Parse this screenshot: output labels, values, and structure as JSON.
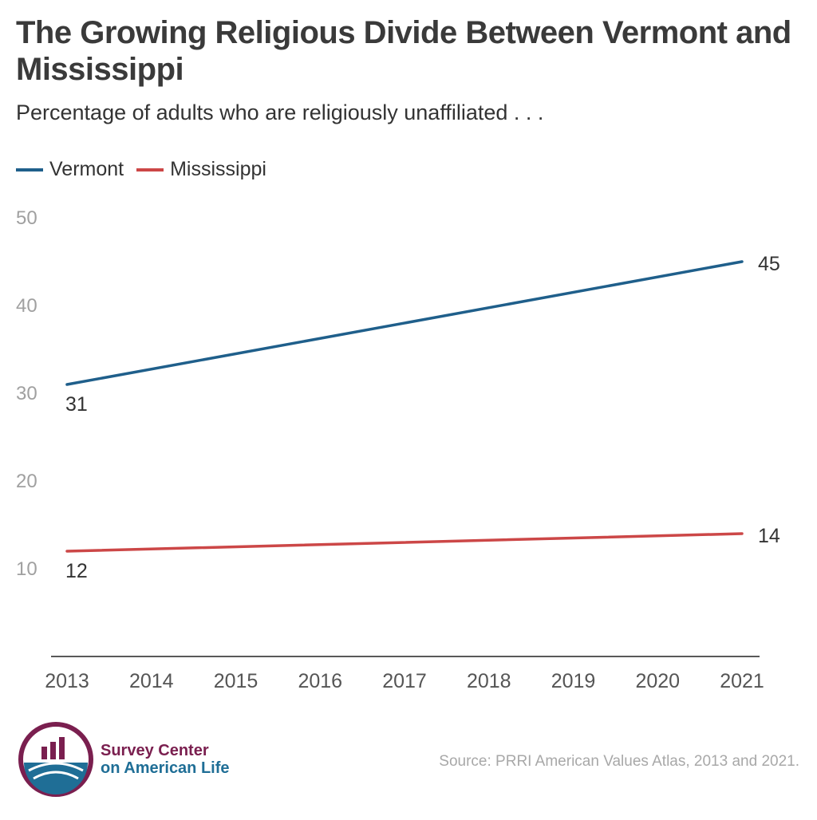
{
  "title": "The Growing Religious Divide Between Vermont and Mississippi",
  "subtitle": "Percentage of adults who are religiously unaffiliated . . .",
  "legend": {
    "vermont": "Vermont",
    "mississippi": "Mississippi"
  },
  "source": "Source: PRRI American Values Atlas, 2013 and 2021.",
  "logo": {
    "line1": "Survey Center",
    "line2": "on American Life",
    "icon": "survey-center-logo-icon",
    "colors": {
      "maroon": "#7a1f4f",
      "blue": "#1f6e96"
    }
  },
  "chart_data": {
    "type": "line",
    "title": "The Growing Religious Divide Between Vermont and Mississippi",
    "subtitle": "Percentage of adults who are religiously unaffiliated . . .",
    "xlabel": "",
    "ylabel": "",
    "x": [
      "2013",
      "2014",
      "2015",
      "2016",
      "2017",
      "2018",
      "2019",
      "2020",
      "2021"
    ],
    "ylim": [
      0,
      50
    ],
    "y_ticks": [
      "10",
      "20",
      "30",
      "40",
      "50"
    ],
    "grid": false,
    "legend_position": "top-left",
    "series": [
      {
        "name": "Vermont",
        "color": "#1f5f8b",
        "points": [
          {
            "x": "2013",
            "y": 31
          },
          {
            "x": "2021",
            "y": 45
          }
        ],
        "labels": [
          "31",
          "45"
        ]
      },
      {
        "name": "Mississippi",
        "color": "#cc4747",
        "points": [
          {
            "x": "2013",
            "y": 12
          },
          {
            "x": "2021",
            "y": 14
          }
        ],
        "labels": [
          "12",
          "14"
        ]
      }
    ]
  }
}
